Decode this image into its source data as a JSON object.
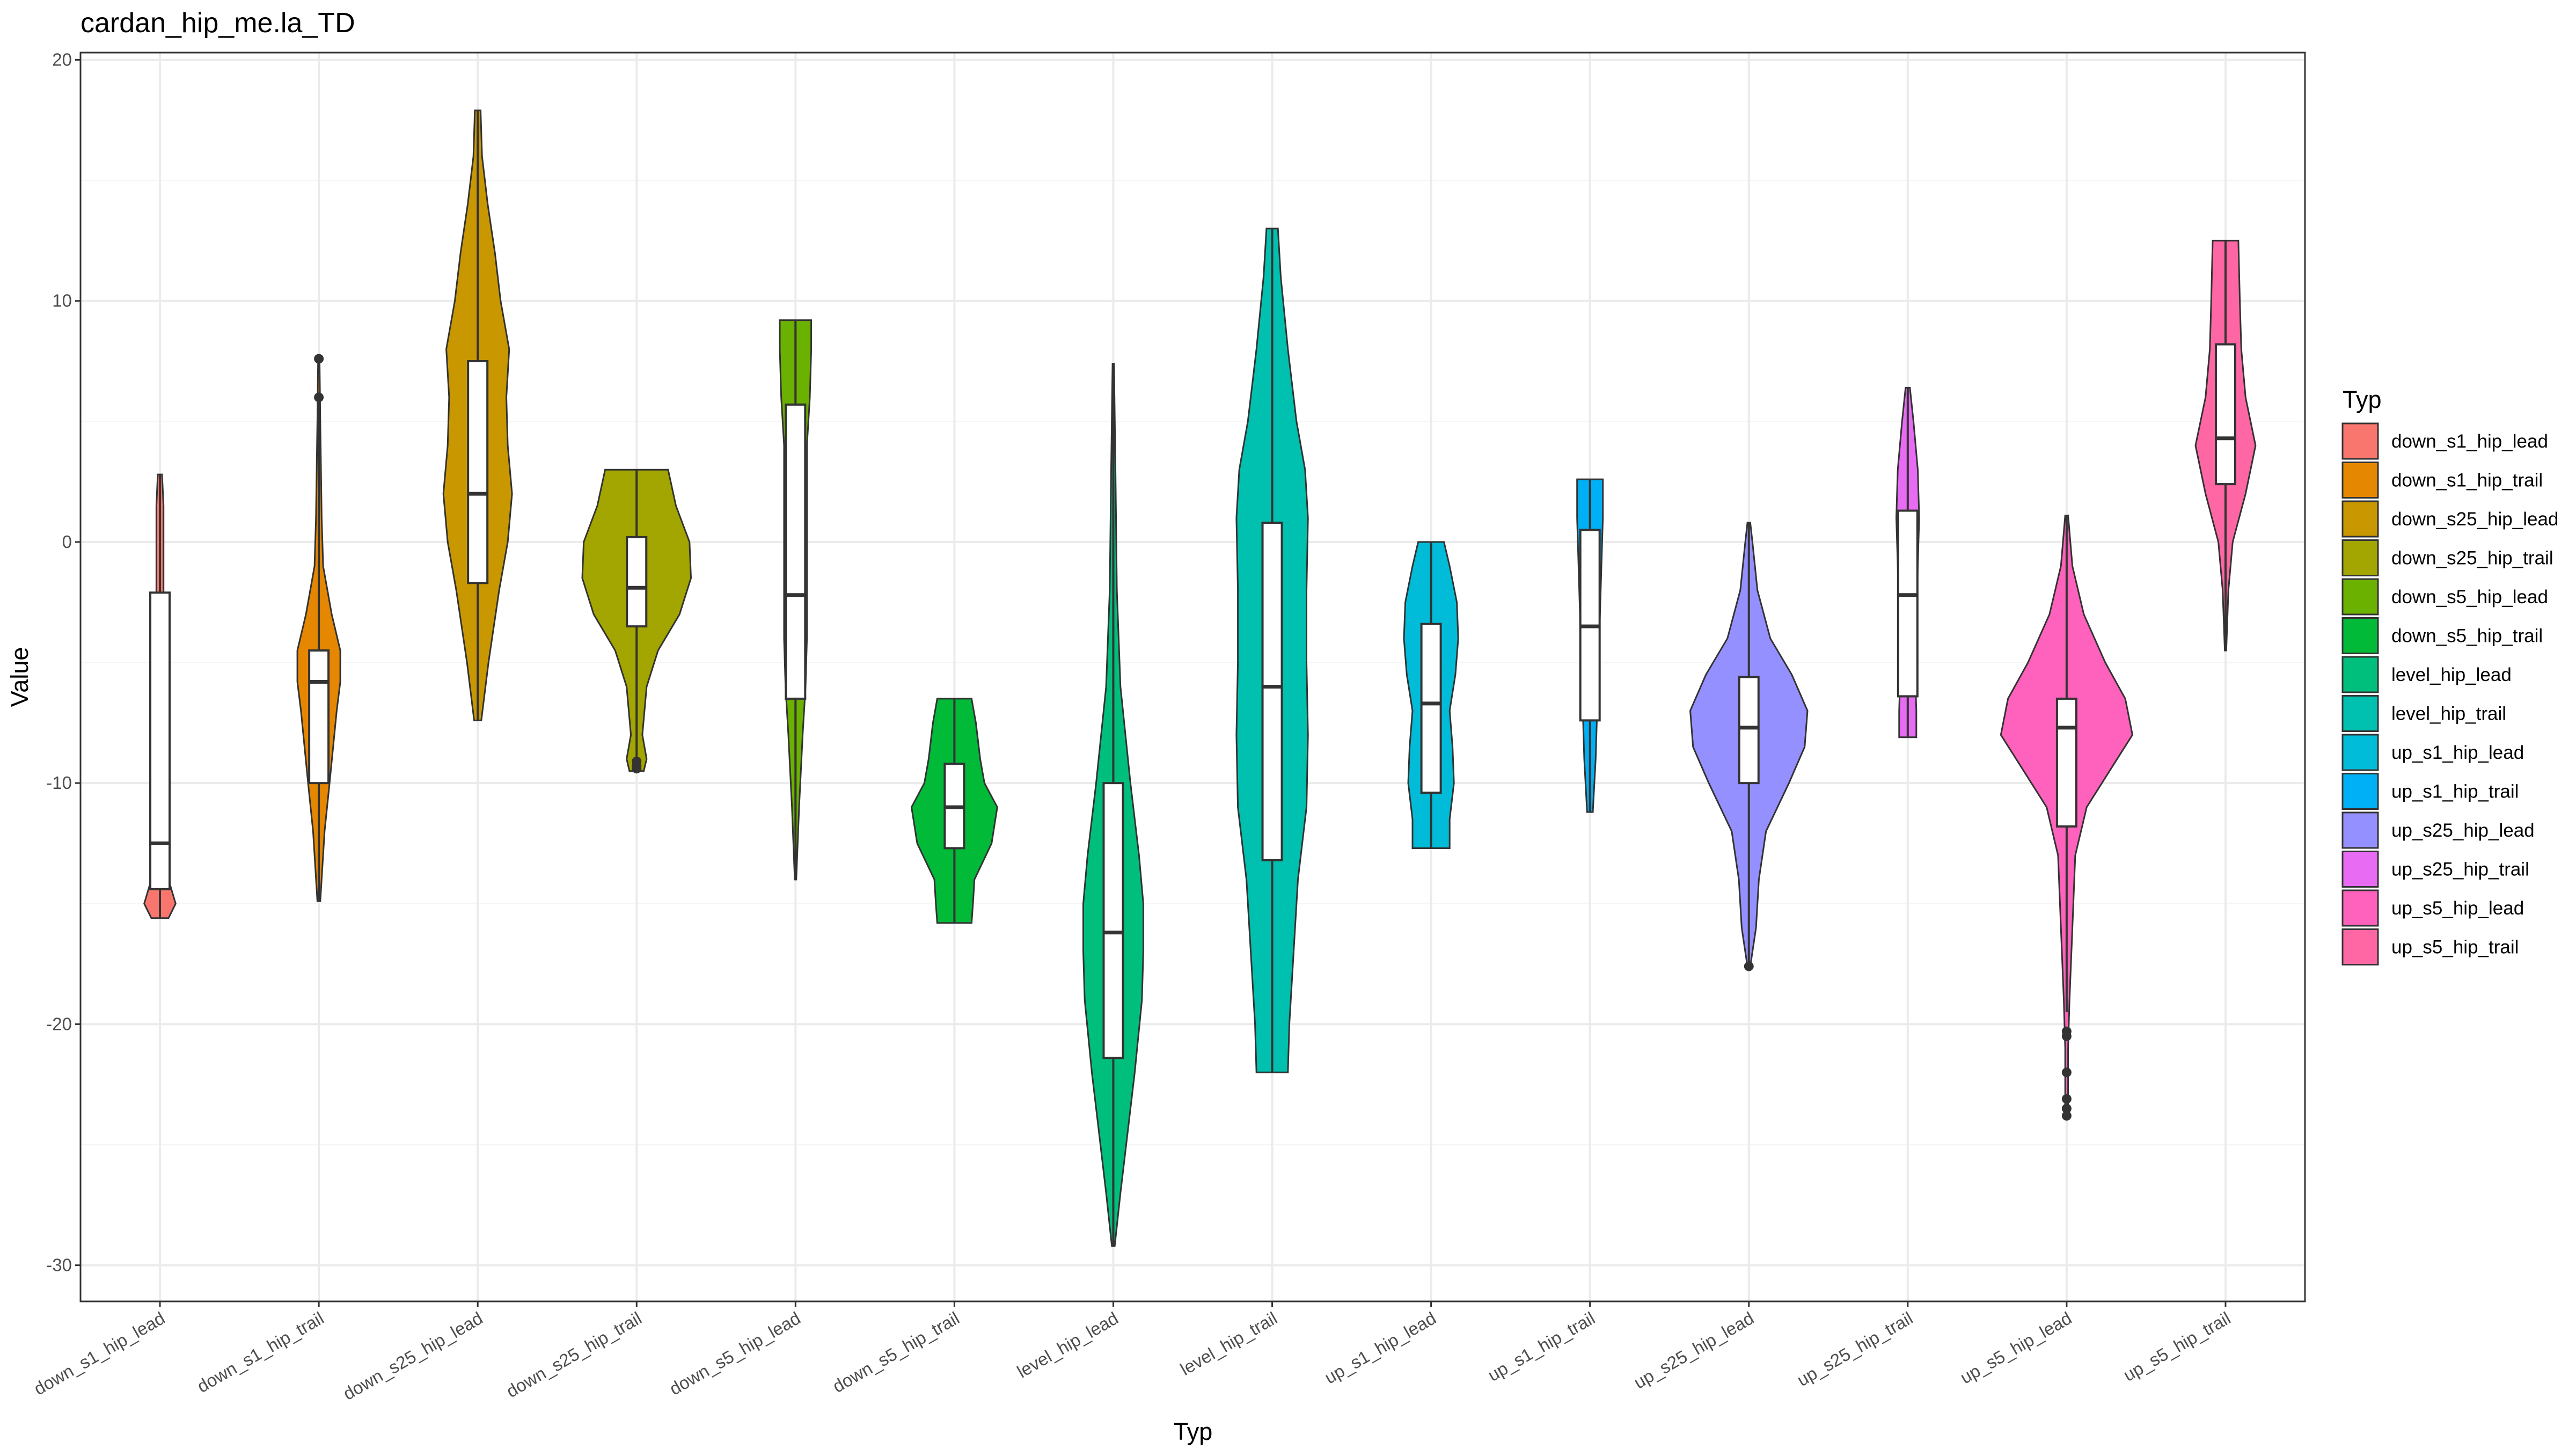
{
  "chart_data": {
    "type": "violin",
    "title": "cardan_hip_me.la_TD",
    "xlabel": "Typ",
    "ylabel": "Value",
    "ylim": [
      -31.5,
      20.3
    ],
    "yticks": [
      -30,
      -20,
      -10,
      0,
      10,
      20
    ],
    "grid": true,
    "legend": {
      "title": "Typ",
      "placement": "right"
    },
    "categories": [
      "down_s1_hip_lead",
      "down_s1_hip_trail",
      "down_s25_hip_lead",
      "down_s25_hip_trail",
      "down_s5_hip_lead",
      "down_s5_hip_trail",
      "level_hip_lead",
      "level_hip_trail",
      "up_s1_hip_lead",
      "up_s1_hip_trail",
      "up_s25_hip_lead",
      "up_s25_hip_trail",
      "up_s5_hip_lead",
      "up_s5_hip_trail"
    ],
    "colors": [
      "#F8766D",
      "#E58700",
      "#C99800",
      "#A3A500",
      "#6BB100",
      "#00BA38",
      "#00BF7D",
      "#00C0AF",
      "#00BCD8",
      "#00B0F6",
      "#9590FF",
      "#E76BF3",
      "#FF62BC",
      "#FF67A4"
    ],
    "series": [
      {
        "name": "down_s1_hip_lead",
        "min": -15.6,
        "max": 2.8,
        "box": {
          "lower_whisker": -15.6,
          "q1": -14.4,
          "median": -12.5,
          "q3": -2.1,
          "upper_whisker": 2.8
        },
        "outliers": [],
        "density": [
          [
            -15.6,
            0.12
          ],
          [
            -15.0,
            0.22
          ],
          [
            -14.0,
            0.12
          ],
          [
            -12.5,
            0.08
          ],
          [
            -10.0,
            0.06
          ],
          [
            -7.0,
            0.05
          ],
          [
            -4.0,
            0.05
          ],
          [
            -2.0,
            0.05
          ],
          [
            0.0,
            0.05
          ],
          [
            1.5,
            0.05
          ],
          [
            2.8,
            0.03
          ]
        ]
      },
      {
        "name": "down_s1_hip_trail",
        "min": -14.9,
        "max": 7.6,
        "box": {
          "lower_whisker": -14.9,
          "q1": -10.0,
          "median": -5.8,
          "q3": -4.5,
          "upper_whisker": 6.0
        },
        "outliers": [
          6.0,
          7.6
        ],
        "density": [
          [
            -14.9,
            0.02
          ],
          [
            -12.0,
            0.08
          ],
          [
            -10.0,
            0.15
          ],
          [
            -7.0,
            0.25
          ],
          [
            -5.8,
            0.3
          ],
          [
            -4.5,
            0.3
          ],
          [
            -3.0,
            0.18
          ],
          [
            -1.0,
            0.06
          ],
          [
            1.0,
            0.04
          ],
          [
            3.0,
            0.03
          ],
          [
            5.0,
            0.02
          ],
          [
            7.6,
            0.01
          ]
        ]
      },
      {
        "name": "down_s25_hip_lead",
        "min": -7.4,
        "max": 17.9,
        "box": {
          "lower_whisker": -7.4,
          "q1": -1.7,
          "median": 2.0,
          "q3": 7.5,
          "upper_whisker": 17.9
        },
        "outliers": [],
        "density": [
          [
            -7.4,
            0.05
          ],
          [
            -5.0,
            0.15
          ],
          [
            -2.0,
            0.3
          ],
          [
            0.0,
            0.42
          ],
          [
            2.0,
            0.48
          ],
          [
            4.0,
            0.42
          ],
          [
            6.0,
            0.4
          ],
          [
            8.0,
            0.44
          ],
          [
            10.0,
            0.32
          ],
          [
            12.0,
            0.24
          ],
          [
            14.0,
            0.14
          ],
          [
            16.0,
            0.06
          ],
          [
            17.9,
            0.04
          ]
        ]
      },
      {
        "name": "down_s25_hip_trail",
        "min": -9.5,
        "max": 3.0,
        "box": {
          "lower_whisker": -9.2,
          "q1": -3.5,
          "median": -1.9,
          "q3": 0.2,
          "upper_whisker": 3.0
        },
        "outliers": [
          -9.1,
          -9.3,
          -9.4
        ],
        "density": [
          [
            -9.5,
            0.1
          ],
          [
            -9.0,
            0.14
          ],
          [
            -8.0,
            0.08
          ],
          [
            -6.0,
            0.14
          ],
          [
            -4.5,
            0.3
          ],
          [
            -3.0,
            0.6
          ],
          [
            -1.5,
            0.76
          ],
          [
            0.0,
            0.74
          ],
          [
            1.5,
            0.55
          ],
          [
            3.0,
            0.44
          ]
        ]
      },
      {
        "name": "down_s5_hip_lead",
        "min": -14.0,
        "max": 9.2,
        "box": {
          "lower_whisker": -14.0,
          "q1": -6.5,
          "median": -2.2,
          "q3": 5.7,
          "upper_whisker": 9.2
        },
        "outliers": [],
        "density": [
          [
            -14.0,
            0.01
          ],
          [
            -11.0,
            0.05
          ],
          [
            -8.0,
            0.1
          ],
          [
            -6.0,
            0.14
          ],
          [
            -4.0,
            0.16
          ],
          [
            -2.0,
            0.16
          ],
          [
            0.0,
            0.16
          ],
          [
            2.0,
            0.16
          ],
          [
            4.0,
            0.16
          ],
          [
            6.0,
            0.2
          ],
          [
            8.0,
            0.22
          ],
          [
            9.2,
            0.22
          ]
        ]
      },
      {
        "name": "down_s5_hip_trail",
        "min": -15.8,
        "max": -6.5,
        "box": {
          "lower_whisker": -15.8,
          "q1": -12.7,
          "median": -11.0,
          "q3": -9.2,
          "upper_whisker": -6.5
        },
        "outliers": [],
        "density": [
          [
            -15.8,
            0.24
          ],
          [
            -15.0,
            0.26
          ],
          [
            -14.0,
            0.28
          ],
          [
            -12.5,
            0.52
          ],
          [
            -11.0,
            0.6
          ],
          [
            -10.0,
            0.42
          ],
          [
            -9.0,
            0.36
          ],
          [
            -7.5,
            0.3
          ],
          [
            -6.5,
            0.24
          ]
        ]
      },
      {
        "name": "level_hip_lead",
        "min": -29.2,
        "max": 7.4,
        "box": {
          "lower_whisker": -29.2,
          "q1": -21.4,
          "median": -16.2,
          "q3": -10.0,
          "upper_whisker": 7.4
        },
        "outliers": [],
        "density": [
          [
            -29.2,
            0.02
          ],
          [
            -27.0,
            0.1
          ],
          [
            -24.0,
            0.22
          ],
          [
            -22.0,
            0.3
          ],
          [
            -19.0,
            0.4
          ],
          [
            -17.0,
            0.42
          ],
          [
            -15.0,
            0.42
          ],
          [
            -13.0,
            0.36
          ],
          [
            -10.0,
            0.24
          ],
          [
            -6.0,
            0.1
          ],
          [
            -2.0,
            0.05
          ],
          [
            3.0,
            0.03
          ],
          [
            7.4,
            0.01
          ]
        ]
      },
      {
        "name": "level_hip_trail",
        "min": -22.0,
        "max": 13.0,
        "box": {
          "lower_whisker": -22.0,
          "q1": -13.2,
          "median": -6.0,
          "q3": 0.8,
          "upper_whisker": 13.0
        },
        "outliers": [],
        "density": [
          [
            -22.0,
            0.22
          ],
          [
            -20.0,
            0.24
          ],
          [
            -17.0,
            0.3
          ],
          [
            -14.0,
            0.36
          ],
          [
            -11.0,
            0.48
          ],
          [
            -8.0,
            0.5
          ],
          [
            -5.0,
            0.48
          ],
          [
            -2.0,
            0.48
          ],
          [
            1.0,
            0.5
          ],
          [
            3.0,
            0.46
          ],
          [
            5.0,
            0.34
          ],
          [
            8.0,
            0.22
          ],
          [
            11.0,
            0.12
          ],
          [
            13.0,
            0.08
          ]
        ]
      },
      {
        "name": "up_s1_hip_lead",
        "min": -12.7,
        "max": 0.0,
        "box": {
          "lower_whisker": -12.7,
          "q1": -10.4,
          "median": -6.7,
          "q3": -3.4,
          "upper_whisker": 0.0
        },
        "outliers": [],
        "density": [
          [
            -12.7,
            0.26
          ],
          [
            -11.5,
            0.26
          ],
          [
            -10.0,
            0.32
          ],
          [
            -8.5,
            0.3
          ],
          [
            -7.0,
            0.26
          ],
          [
            -5.5,
            0.34
          ],
          [
            -4.0,
            0.38
          ],
          [
            -2.5,
            0.36
          ],
          [
            -1.0,
            0.26
          ],
          [
            0.0,
            0.18
          ]
        ]
      },
      {
        "name": "up_s1_hip_trail",
        "min": -11.2,
        "max": 2.6,
        "box": {
          "lower_whisker": -11.2,
          "q1": -7.4,
          "median": -3.5,
          "q3": 0.5,
          "upper_whisker": 2.6
        },
        "outliers": [],
        "density": [
          [
            -11.2,
            0.04
          ],
          [
            -9.0,
            0.08
          ],
          [
            -7.0,
            0.1
          ],
          [
            -5.0,
            0.12
          ],
          [
            -3.0,
            0.14
          ],
          [
            -1.0,
            0.16
          ],
          [
            1.0,
            0.18
          ],
          [
            2.6,
            0.18
          ]
        ]
      },
      {
        "name": "up_s25_hip_lead",
        "min": -17.6,
        "max": 0.8,
        "box": {
          "lower_whisker": -17.6,
          "q1": -10.0,
          "median": -7.7,
          "q3": -5.6,
          "upper_whisker": 0.8
        },
        "outliers": [
          -17.6
        ],
        "density": [
          [
            -17.6,
            0.02
          ],
          [
            -16.0,
            0.1
          ],
          [
            -14.0,
            0.14
          ],
          [
            -12.0,
            0.24
          ],
          [
            -10.0,
            0.56
          ],
          [
            -8.5,
            0.78
          ],
          [
            -7.0,
            0.82
          ],
          [
            -5.5,
            0.6
          ],
          [
            -4.0,
            0.3
          ],
          [
            -2.0,
            0.12
          ],
          [
            0.0,
            0.05
          ],
          [
            0.8,
            0.02
          ]
        ]
      },
      {
        "name": "up_s25_hip_trail",
        "min": -8.1,
        "max": 6.4,
        "box": {
          "lower_whisker": -8.1,
          "q1": -6.4,
          "median": -2.2,
          "q3": 1.3,
          "upper_whisker": 6.4
        },
        "outliers": [],
        "density": [
          [
            -8.1,
            0.12
          ],
          [
            -7.0,
            0.12
          ],
          [
            -5.0,
            0.1
          ],
          [
            -3.0,
            0.12
          ],
          [
            -1.0,
            0.14
          ],
          [
            1.0,
            0.16
          ],
          [
            3.0,
            0.14
          ],
          [
            5.0,
            0.08
          ],
          [
            6.4,
            0.03
          ]
        ]
      },
      {
        "name": "up_s5_hip_lead",
        "min": -23.8,
        "max": 1.1,
        "box": {
          "lower_whisker": -19.5,
          "q1": -11.8,
          "median": -7.7,
          "q3": -6.5,
          "upper_whisker": 1.1
        },
        "outliers": [
          -20.3,
          -20.5,
          -22.0,
          -23.1,
          -23.5,
          -23.8
        ],
        "density": [
          [
            -23.8,
            0.02
          ],
          [
            -21.0,
            0.02
          ],
          [
            -19.0,
            0.04
          ],
          [
            -16.0,
            0.08
          ],
          [
            -13.0,
            0.12
          ],
          [
            -11.0,
            0.28
          ],
          [
            -9.5,
            0.6
          ],
          [
            -8.0,
            0.92
          ],
          [
            -6.5,
            0.82
          ],
          [
            -5.0,
            0.54
          ],
          [
            -3.0,
            0.24
          ],
          [
            -1.0,
            0.08
          ],
          [
            1.1,
            0.02
          ]
        ]
      },
      {
        "name": "up_s5_hip_trail",
        "min": -4.5,
        "max": 12.5,
        "box": {
          "lower_whisker": -4.5,
          "q1": 2.4,
          "median": 4.3,
          "q3": 8.2,
          "upper_whisker": 12.5
        },
        "outliers": [],
        "density": [
          [
            -4.5,
            0.01
          ],
          [
            -2.0,
            0.04
          ],
          [
            0.0,
            0.1
          ],
          [
            2.0,
            0.28
          ],
          [
            4.0,
            0.42
          ],
          [
            6.0,
            0.28
          ],
          [
            8.0,
            0.22
          ],
          [
            10.0,
            0.2
          ],
          [
            12.5,
            0.18
          ]
        ]
      }
    ]
  }
}
